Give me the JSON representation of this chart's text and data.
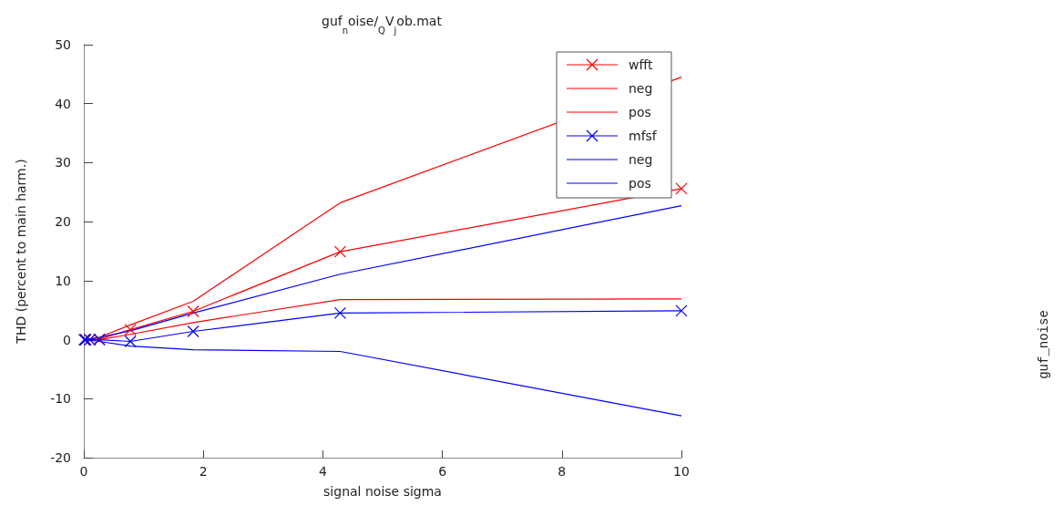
{
  "chart_data": {
    "type": "line",
    "title": "guf$_{n}$oise/$_{Q}$V$_{j}$ob.mat",
    "xlabel": "signal noise sigma",
    "ylabel": "THD (percent to main harm.)",
    "annotations": [
      "guf_noise"
    ],
    "x": [
      0.01,
      0.03,
      0.1,
      0.26,
      0.78,
      1.83,
      4.29,
      10
    ],
    "series": [
      {
        "name": "wfft",
        "color": "#ff0000",
        "marker": "cross",
        "values": [
          0,
          0,
          0,
          0.1,
          1.7,
          4.8,
          14.9,
          25.6
        ]
      },
      {
        "name": "neg",
        "color": "#ff0000",
        "marker": "none",
        "values": [
          0,
          0,
          0.1,
          0.4,
          2.5,
          6.5,
          23.2,
          44.5
        ]
      },
      {
        "name": "pos",
        "color": "#ff0000",
        "marker": "none",
        "values": [
          0,
          0,
          0,
          0,
          0.9,
          2.9,
          6.8,
          6.9
        ]
      },
      {
        "name": "mfsf",
        "color": "#0000ff",
        "marker": "cross",
        "values": [
          0,
          0,
          0,
          0,
          -0.3,
          1.4,
          4.5,
          4.9
        ]
      },
      {
        "name": "neg",
        "color": "#0000ff",
        "marker": "none",
        "values": [
          0,
          0,
          0.1,
          0.4,
          1.5,
          4.5,
          11.1,
          22.7
        ]
      },
      {
        "name": "pos",
        "color": "#0000ff",
        "marker": "none",
        "values": [
          0,
          0,
          -0.1,
          -0.3,
          -1.1,
          -1.7,
          -2.0,
          -12.9
        ]
      }
    ],
    "xlim": [
      0,
      10
    ],
    "xticks": [
      0,
      2,
      4,
      6,
      8,
      10
    ],
    "ylim": [
      -20,
      50
    ],
    "yticks": [
      -20,
      -10,
      0,
      10,
      20,
      30,
      40,
      50
    ],
    "grid": false,
    "legend": "top right",
    "line_style": "solid"
  }
}
